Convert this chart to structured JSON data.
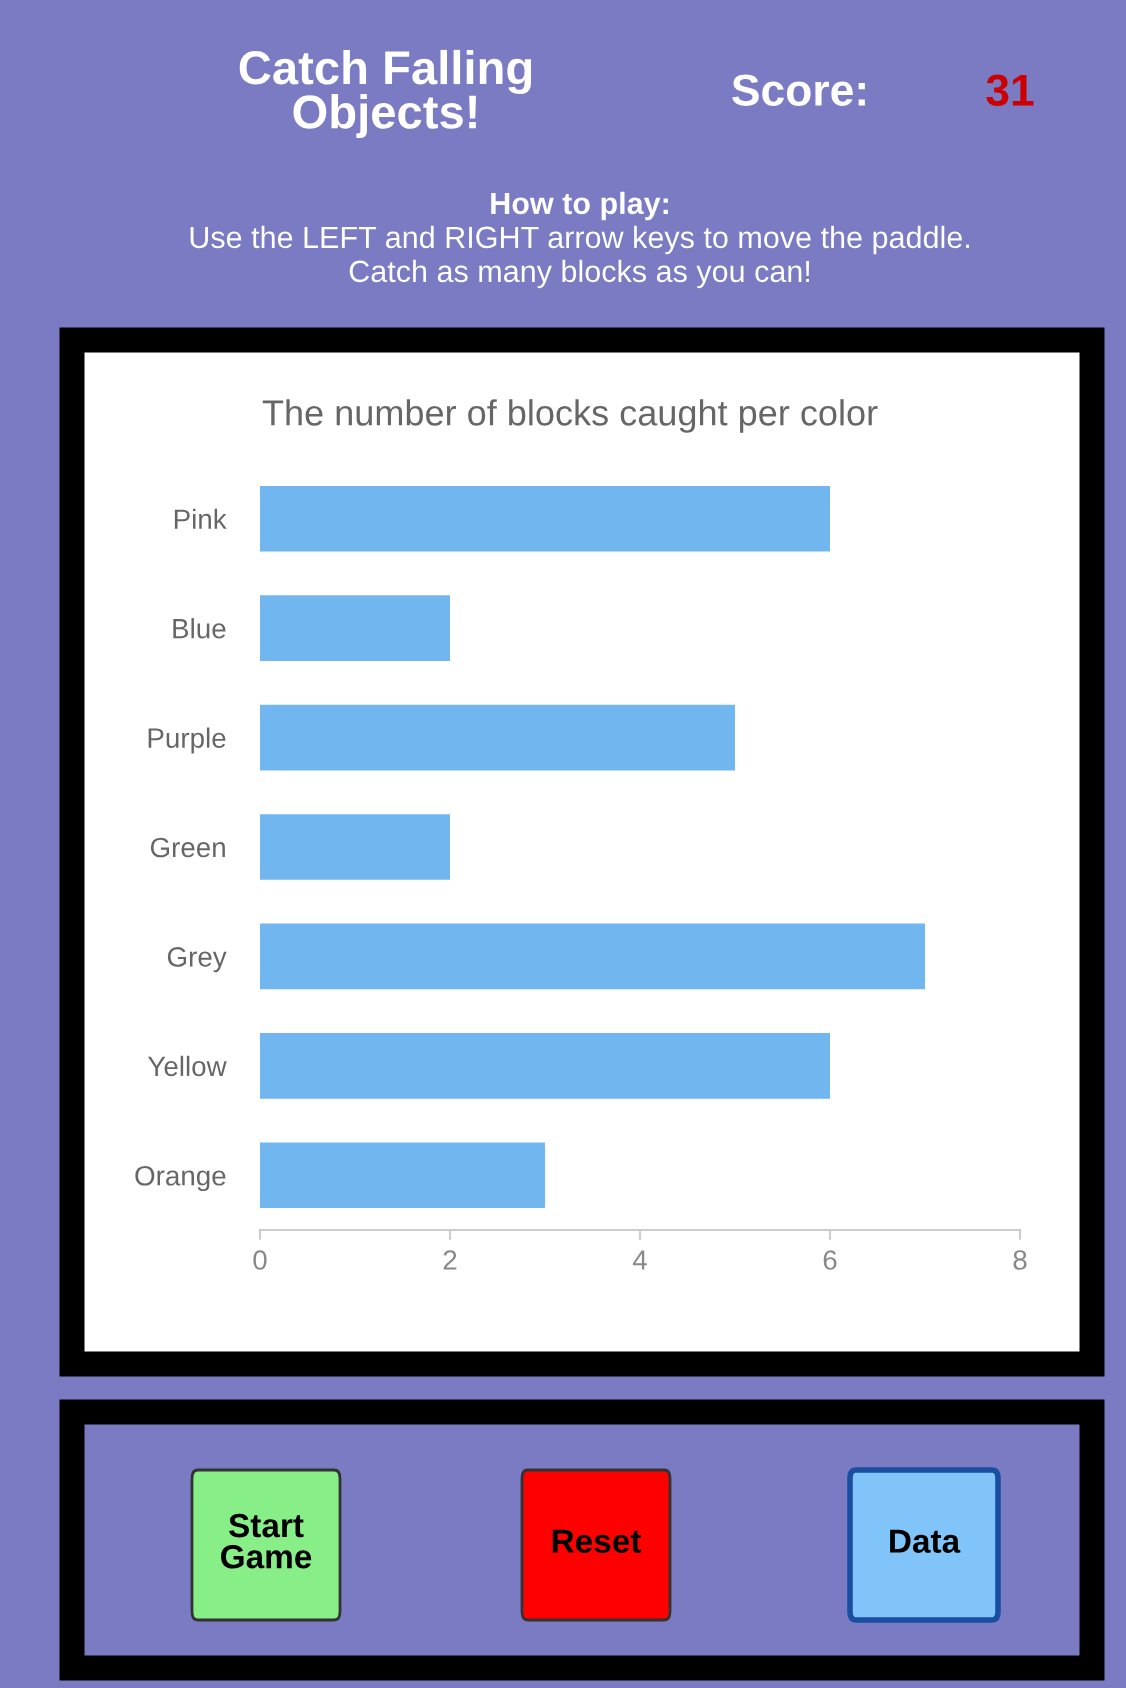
{
  "chart_data": [
    {
      "type": "other",
      "title": "Catch Falling Objects!",
      "annotations": [
        "Score:",
        "31",
        "How to play:",
        "Use the LEFT and RIGHT arrow keys to move the paddle.",
        "Catch as many blocks as you can!"
      ],
      "colors": [
        "#ffffff",
        "#cc0000",
        "#ffffff",
        "#ffffff",
        "#ffffff"
      ]
    },
    {
      "type": "bar",
      "orientation": "horizontal",
      "title": "The number of blocks caught per color",
      "categories": [
        "Pink",
        "Blue",
        "Purple",
        "Green",
        "Grey",
        "Yellow",
        "Orange"
      ],
      "values": [
        6,
        2,
        5,
        2,
        7,
        6,
        3
      ],
      "color": "#72b6f0",
      "xlim": [
        0,
        8
      ],
      "xticks": [
        0,
        2,
        4,
        6,
        8
      ],
      "grid": false
    },
    {
      "type": "other",
      "annotations": [
        "Start Game",
        "Reset",
        "Data"
      ],
      "colors": [
        "#88ee88",
        "#ff0000",
        "#80c4fa"
      ]
    }
  ]
}
